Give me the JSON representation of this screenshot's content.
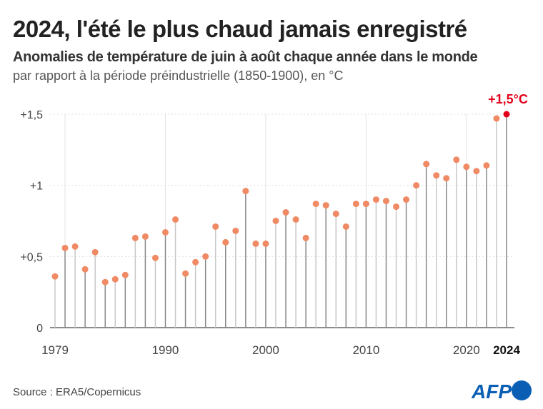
{
  "title": "2024, l'été le plus chaud jamais enregistré",
  "subtitle": "Anomalies de température de juin à août chaque année dans le monde",
  "note": "par rapport à la période préindustrielle (1850-1900), en °C",
  "source": "Source : ERA5/Copernicus",
  "logo": "AFP",
  "colors": {
    "dot": "#f08a64",
    "highlight": "#e2001a",
    "stem": "#999999",
    "logo_blue": "#0a5fb4"
  },
  "chart_data": {
    "type": "lollipop",
    "xlabel": "",
    "ylabel": "",
    "ylim": [
      0,
      1.5
    ],
    "yticks": [
      {
        "v": 0,
        "label": "0"
      },
      {
        "v": 0.5,
        "label": "+0,5"
      },
      {
        "v": 1,
        "label": "+1"
      },
      {
        "v": 1.5,
        "label": "+1,5"
      }
    ],
    "xticks": [
      {
        "v": 1979,
        "label": "1979"
      },
      {
        "v": 1990,
        "label": "1990"
      },
      {
        "v": 2000,
        "label": "2000"
      },
      {
        "v": 2010,
        "label": "2010"
      },
      {
        "v": 2020,
        "label": "2020"
      },
      {
        "v": 2024,
        "label": "2024"
      }
    ],
    "x": [
      1979,
      1980,
      1981,
      1982,
      1983,
      1984,
      1985,
      1986,
      1987,
      1988,
      1989,
      1990,
      1991,
      1992,
      1993,
      1994,
      1995,
      1996,
      1997,
      1998,
      1999,
      2000,
      2001,
      2002,
      2003,
      2004,
      2005,
      2006,
      2007,
      2008,
      2009,
      2010,
      2011,
      2012,
      2013,
      2014,
      2015,
      2016,
      2017,
      2018,
      2019,
      2020,
      2021,
      2022,
      2023,
      2024
    ],
    "values": [
      0.36,
      0.56,
      0.57,
      0.41,
      0.53,
      0.32,
      0.34,
      0.37,
      0.63,
      0.64,
      0.49,
      0.67,
      0.76,
      0.38,
      0.46,
      0.5,
      0.71,
      0.6,
      0.68,
      0.96,
      0.59,
      0.59,
      0.75,
      0.81,
      0.76,
      0.63,
      0.87,
      0.86,
      0.8,
      0.71,
      0.87,
      0.87,
      0.9,
      0.89,
      0.85,
      0.9,
      1.0,
      1.15,
      1.07,
      1.05,
      1.18,
      1.13,
      1.1,
      1.14,
      1.47,
      1.5
    ],
    "annotation": {
      "x": 2024,
      "label": "+1,5°C"
    },
    "grid": "vertical every 10 years, dotted horizontal"
  }
}
